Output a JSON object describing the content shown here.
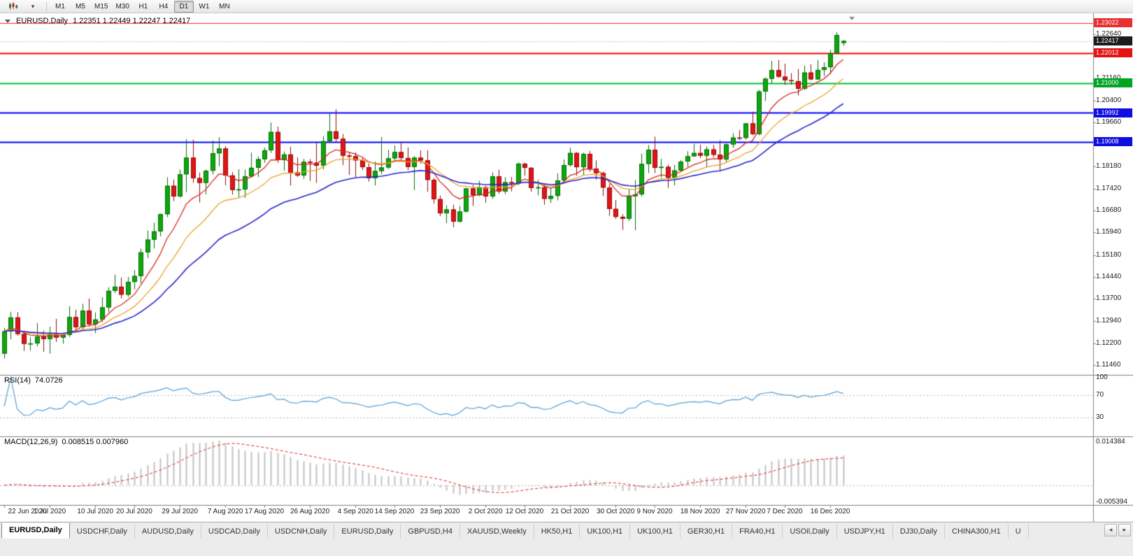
{
  "toolbar": {
    "timeframes": [
      {
        "label": "M1",
        "active": false
      },
      {
        "label": "M5",
        "active": false
      },
      {
        "label": "M15",
        "active": false
      },
      {
        "label": "M30",
        "active": false
      },
      {
        "label": "H1",
        "active": false
      },
      {
        "label": "H4",
        "active": false
      },
      {
        "label": "D1",
        "active": true
      },
      {
        "label": "W1",
        "active": false
      },
      {
        "label": "MN",
        "active": false
      }
    ]
  },
  "chart": {
    "symbol_title": "EURUSD,Daily",
    "ohlc_line": "1.22351 1.22449 1.22247 1.22417",
    "current_price": "1.22417"
  },
  "indicators": {
    "rsi": {
      "label": "RSI(14)",
      "value": "74.0726",
      "period": 14,
      "color": "#569fd6",
      "levels": [
        70,
        30
      ],
      "scale_labels": [
        "100",
        "70",
        "30"
      ],
      "scale_values": [
        100,
        70,
        30
      ]
    },
    "macd": {
      "label": "MACD(12,26,9)",
      "values": "0.008515 0.007960",
      "fast": 12,
      "slow": 26,
      "signal": 9,
      "hist_color": "#c2c2c2",
      "signal_color": "#e02020",
      "scale_max": "0.014384",
      "scale_min": "-0.005394"
    },
    "moving_averages": [
      {
        "period": 8,
        "method": "ema",
        "color": "#d8281e",
        "width": 1.3
      },
      {
        "period": 16,
        "method": "ema",
        "color": "#eda32b",
        "width": 1.3
      },
      {
        "period": 30,
        "method": "ema",
        "color": "#2626cc",
        "width": 1.6
      }
    ]
  },
  "chart_data": {
    "type": "candlestick",
    "symbol": "EURUSD",
    "timeframe": "Daily",
    "ylim": [
      1.11128,
      1.23353
    ],
    "up_color": "#0CA80C",
    "up_edge": "#066A06",
    "down_color": "#E01515",
    "down_edge": "#8F0808",
    "price_axis_labels": [
      "1.22640",
      "1.21900",
      "1.21160",
      "1.20400",
      "1.19660",
      "1.18920",
      "1.18180",
      "1.17420",
      "1.16680",
      "1.15940",
      "1.15180",
      "1.14440",
      "1.13700",
      "1.12940",
      "1.12200",
      "1.11460"
    ],
    "x_tick_labels": [
      "22 Jun 2020",
      "1 Jul 2020",
      "10 Jul 2020",
      "20 Jul 2020",
      "29 Jul 2020",
      "7 Aug 2020",
      "17 Aug 2020",
      "26 Aug 2020",
      "4 Sep 2020",
      "14 Sep 2020",
      "23 Sep 2020",
      "2 Oct 2020",
      "12 Oct 2020",
      "21 Oct 2020",
      "30 Oct 2020",
      "9 Nov 2020",
      "18 Nov 2020",
      "27 Nov 2020",
      "7 Dec 2020",
      "16 Dec 2020"
    ],
    "x_tick_indices": [
      0,
      7,
      14,
      20,
      27,
      34,
      40,
      47,
      54,
      60,
      67,
      74,
      80,
      87,
      94,
      100,
      107,
      114,
      120,
      127
    ],
    "levels": [
      {
        "price": 1.23022,
        "label": "1.23022",
        "color": "#ff2222",
        "width": 1,
        "tag_bg": "#e83030",
        "dash": null
      },
      {
        "price": 1.22417,
        "label": "1.22417",
        "color": "#9a9a9a",
        "width": 1,
        "tag_bg": "#1b1b1b",
        "dash": [
          1,
          2
        ]
      },
      {
        "price": 1.22012,
        "label": "1.22012",
        "color": "#ff0000",
        "width": 2,
        "tag_bg": "#e41414",
        "dash": null
      },
      {
        "price": 1.21,
        "label": "1.21000",
        "color": "#00c22a",
        "width": 2,
        "tag_bg": "#00a524",
        "dash": null
      },
      {
        "price": 1.19992,
        "label": "1.19992",
        "color": "#0000ff",
        "width": 2,
        "tag_bg": "#0e0ee0",
        "dash": null
      },
      {
        "price": 1.19008,
        "label": "1.19008",
        "color": "#0000ff",
        "width": 2,
        "tag_bg": "#0e0ee0",
        "dash": null
      }
    ],
    "candles": [
      [
        1.1185,
        1.1271,
        1.1168,
        1.126
      ],
      [
        1.126,
        1.1326,
        1.1233,
        1.1307
      ],
      [
        1.1307,
        1.1325,
        1.1245,
        1.1251
      ],
      [
        1.1251,
        1.1262,
        1.1194,
        1.1218
      ],
      [
        1.1218,
        1.124,
        1.1195,
        1.1219
      ],
      [
        1.1219,
        1.1288,
        1.1209,
        1.1242
      ],
      [
        1.1242,
        1.1262,
        1.1191,
        1.1234
      ],
      [
        1.1234,
        1.1276,
        1.1185,
        1.1251
      ],
      [
        1.1251,
        1.1302,
        1.1224,
        1.1239
      ],
      [
        1.1239,
        1.1254,
        1.1218,
        1.1248
      ],
      [
        1.1248,
        1.1345,
        1.1241,
        1.1308
      ],
      [
        1.1308,
        1.1333,
        1.1259,
        1.1274
      ],
      [
        1.1274,
        1.1353,
        1.1265,
        1.133
      ],
      [
        1.133,
        1.1371,
        1.1276,
        1.1284
      ],
      [
        1.1284,
        1.1324,
        1.1254,
        1.13
      ],
      [
        1.13,
        1.1375,
        1.1291,
        1.1341
      ],
      [
        1.1341,
        1.1409,
        1.1325,
        1.1397
      ],
      [
        1.1397,
        1.1452,
        1.139,
        1.1411
      ],
      [
        1.1411,
        1.1442,
        1.1371,
        1.1384
      ],
      [
        1.1384,
        1.1444,
        1.1377,
        1.1427
      ],
      [
        1.1427,
        1.1467,
        1.1402,
        1.1447
      ],
      [
        1.1447,
        1.154,
        1.1422,
        1.1527
      ],
      [
        1.1527,
        1.1601,
        1.1507,
        1.157
      ],
      [
        1.157,
        1.1627,
        1.154,
        1.1598
      ],
      [
        1.1598,
        1.1658,
        1.1581,
        1.1656
      ],
      [
        1.1656,
        1.1781,
        1.1646,
        1.1752
      ],
      [
        1.1752,
        1.1773,
        1.17,
        1.1716
      ],
      [
        1.1716,
        1.1807,
        1.1712,
        1.1791
      ],
      [
        1.1791,
        1.1909,
        1.1731,
        1.1847
      ],
      [
        1.1847,
        1.1908,
        1.1762,
        1.1778
      ],
      [
        1.1778,
        1.1797,
        1.1696,
        1.1762
      ],
      [
        1.1762,
        1.1807,
        1.1723,
        1.1803
      ],
      [
        1.1803,
        1.1905,
        1.179,
        1.1862
      ],
      [
        1.1862,
        1.1916,
        1.1818,
        1.1878
      ],
      [
        1.1878,
        1.1886,
        1.1754,
        1.1787
      ],
      [
        1.1787,
        1.1798,
        1.1722,
        1.1738
      ],
      [
        1.1738,
        1.1808,
        1.1711,
        1.174
      ],
      [
        1.174,
        1.1807,
        1.1711,
        1.1784
      ],
      [
        1.1784,
        1.1864,
        1.1781,
        1.1813
      ],
      [
        1.1813,
        1.1851,
        1.1782,
        1.1842
      ],
      [
        1.1842,
        1.1881,
        1.183,
        1.1872
      ],
      [
        1.1872,
        1.1966,
        1.1863,
        1.1934
      ],
      [
        1.1934,
        1.1952,
        1.183,
        1.1839
      ],
      [
        1.1839,
        1.1868,
        1.1803,
        1.1858
      ],
      [
        1.1858,
        1.1884,
        1.1753,
        1.1797
      ],
      [
        1.1797,
        1.1848,
        1.1782,
        1.1787
      ],
      [
        1.1787,
        1.1843,
        1.1775,
        1.1833
      ],
      [
        1.1833,
        1.1842,
        1.1769,
        1.183
      ],
      [
        1.183,
        1.1901,
        1.1762,
        1.182
      ],
      [
        1.182,
        1.192,
        1.1808,
        1.1903
      ],
      [
        1.1903,
        1.1996,
        1.1898,
        1.1936
      ],
      [
        1.1936,
        1.2011,
        1.1898,
        1.1911
      ],
      [
        1.1911,
        1.1927,
        1.1822,
        1.1854
      ],
      [
        1.1854,
        1.1864,
        1.1789,
        1.1852
      ],
      [
        1.1852,
        1.1865,
        1.1781,
        1.1838
      ],
      [
        1.1838,
        1.1848,
        1.1805,
        1.1815
      ],
      [
        1.1815,
        1.1828,
        1.1766,
        1.1778
      ],
      [
        1.1778,
        1.1834,
        1.1753,
        1.1802
      ],
      [
        1.1802,
        1.1917,
        1.1791,
        1.1814
      ],
      [
        1.1814,
        1.1874,
        1.1809,
        1.1845
      ],
      [
        1.1845,
        1.1888,
        1.1839,
        1.1866
      ],
      [
        1.1866,
        1.1901,
        1.1842,
        1.1846
      ],
      [
        1.1846,
        1.1882,
        1.1805,
        1.1816
      ],
      [
        1.1816,
        1.1852,
        1.1737,
        1.1847
      ],
      [
        1.1847,
        1.1872,
        1.1827,
        1.1838
      ],
      [
        1.1838,
        1.1872,
        1.1732,
        1.1772
      ],
      [
        1.1772,
        1.1778,
        1.1692,
        1.1707
      ],
      [
        1.1707,
        1.1719,
        1.165,
        1.1659
      ],
      [
        1.1659,
        1.1686,
        1.1626,
        1.1672
      ],
      [
        1.1672,
        1.1688,
        1.1612,
        1.1631
      ],
      [
        1.1631,
        1.1684,
        1.1628,
        1.1665
      ],
      [
        1.1665,
        1.1745,
        1.1662,
        1.1743
      ],
      [
        1.1743,
        1.1755,
        1.1684,
        1.172
      ],
      [
        1.172,
        1.1769,
        1.1717,
        1.1747
      ],
      [
        1.1747,
        1.1751,
        1.1695,
        1.1716
      ],
      [
        1.1716,
        1.1797,
        1.1708,
        1.1784
      ],
      [
        1.1784,
        1.1807,
        1.1725,
        1.1733
      ],
      [
        1.1733,
        1.1781,
        1.1724,
        1.1764
      ],
      [
        1.1764,
        1.1782,
        1.1733,
        1.176
      ],
      [
        1.176,
        1.1831,
        1.1754,
        1.1827
      ],
      [
        1.1827,
        1.183,
        1.1786,
        1.1813
      ],
      [
        1.1813,
        1.1815,
        1.1732,
        1.1745
      ],
      [
        1.1745,
        1.1772,
        1.172,
        1.1747
      ],
      [
        1.1747,
        1.1758,
        1.1688,
        1.1708
      ],
      [
        1.1708,
        1.1746,
        1.1694,
        1.1718
      ],
      [
        1.1718,
        1.1794,
        1.1703,
        1.177
      ],
      [
        1.177,
        1.1841,
        1.176,
        1.1822
      ],
      [
        1.1822,
        1.1881,
        1.1817,
        1.1863
      ],
      [
        1.1863,
        1.1866,
        1.1786,
        1.1815
      ],
      [
        1.1815,
        1.1864,
        1.1787,
        1.186
      ],
      [
        1.186,
        1.187,
        1.18,
        1.181
      ],
      [
        1.181,
        1.1838,
        1.1773,
        1.1795
      ],
      [
        1.1795,
        1.18,
        1.1718,
        1.1746
      ],
      [
        1.1746,
        1.1759,
        1.165,
        1.1674
      ],
      [
        1.1674,
        1.1704,
        1.164,
        1.1647
      ],
      [
        1.1647,
        1.1656,
        1.1603,
        1.1641
      ],
      [
        1.1641,
        1.174,
        1.1633,
        1.1717
      ],
      [
        1.1717,
        1.1771,
        1.1602,
        1.1723
      ],
      [
        1.1723,
        1.1861,
        1.1716,
        1.1826
      ],
      [
        1.1826,
        1.189,
        1.1795,
        1.1874
      ],
      [
        1.1874,
        1.1918,
        1.1795,
        1.1813
      ],
      [
        1.1813,
        1.1843,
        1.1779,
        1.1816
      ],
      [
        1.1816,
        1.1824,
        1.1745,
        1.1779
      ],
      [
        1.1779,
        1.1823,
        1.1753,
        1.1804
      ],
      [
        1.1804,
        1.1839,
        1.1799,
        1.1834
      ],
      [
        1.1834,
        1.1869,
        1.1814,
        1.1852
      ],
      [
        1.1852,
        1.1894,
        1.185,
        1.1863
      ],
      [
        1.1863,
        1.1891,
        1.1846,
        1.1854
      ],
      [
        1.1854,
        1.1885,
        1.1815,
        1.1875
      ],
      [
        1.1875,
        1.189,
        1.1848,
        1.1857
      ],
      [
        1.1857,
        1.1906,
        1.18,
        1.1841
      ],
      [
        1.1841,
        1.1895,
        1.1832,
        1.1892
      ],
      [
        1.1892,
        1.193,
        1.188,
        1.1915
      ],
      [
        1.1915,
        1.1941,
        1.1906,
        1.1914
      ],
      [
        1.1914,
        1.1964,
        1.1908,
        1.1963
      ],
      [
        1.1963,
        1.2003,
        1.1924,
        1.1927
      ],
      [
        1.1927,
        1.2076,
        1.1923,
        1.2071
      ],
      [
        1.2071,
        1.2118,
        1.2039,
        1.2114
      ],
      [
        1.2114,
        1.2174,
        1.2098,
        1.2143
      ],
      [
        1.2143,
        1.2177,
        1.2117,
        1.2121
      ],
      [
        1.2121,
        1.2165,
        1.2093,
        1.2109
      ],
      [
        1.2109,
        1.2133,
        1.2094,
        1.2106
      ],
      [
        1.2106,
        1.2147,
        1.2058,
        1.208
      ],
      [
        1.208,
        1.2159,
        1.2076,
        1.2135
      ],
      [
        1.2135,
        1.2163,
        1.2109,
        1.2112
      ],
      [
        1.2112,
        1.2177,
        1.211,
        1.2144
      ],
      [
        1.2144,
        1.2169,
        1.2123,
        1.2153
      ],
      [
        1.2153,
        1.2212,
        1.213,
        1.22
      ],
      [
        1.22,
        1.2272,
        1.2196,
        1.2262
      ],
      [
        1.22351,
        1.22449,
        1.22247,
        1.22417
      ]
    ]
  },
  "tabs": {
    "left_arrow": "◄",
    "right_arrow": "►",
    "items": [
      {
        "label": "EURUSD,Daily",
        "active": true
      },
      {
        "label": "USDCHF,Daily",
        "active": false
      },
      {
        "label": "AUDUSD,Daily",
        "active": false
      },
      {
        "label": "USDCAD,Daily",
        "active": false
      },
      {
        "label": "USDCNH,Daily",
        "active": false
      },
      {
        "label": "EURUSD,Daily",
        "active": false
      },
      {
        "label": "GBPUSD,H4",
        "active": false
      },
      {
        "label": "XAUUSD,Weekly",
        "active": false
      },
      {
        "label": "HK50,H1",
        "active": false
      },
      {
        "label": "UK100,H1",
        "active": false
      },
      {
        "label": "UK100,H1",
        "active": false
      },
      {
        "label": "GER30,H1",
        "active": false
      },
      {
        "label": "FRA40,H1",
        "active": false
      },
      {
        "label": "USOil,Daily",
        "active": false
      },
      {
        "label": "USDJPY,H1",
        "active": false
      },
      {
        "label": "DJ30,Daily",
        "active": false
      },
      {
        "label": "CHINA300,H1",
        "active": false
      },
      {
        "label": "U",
        "active": false
      }
    ]
  }
}
